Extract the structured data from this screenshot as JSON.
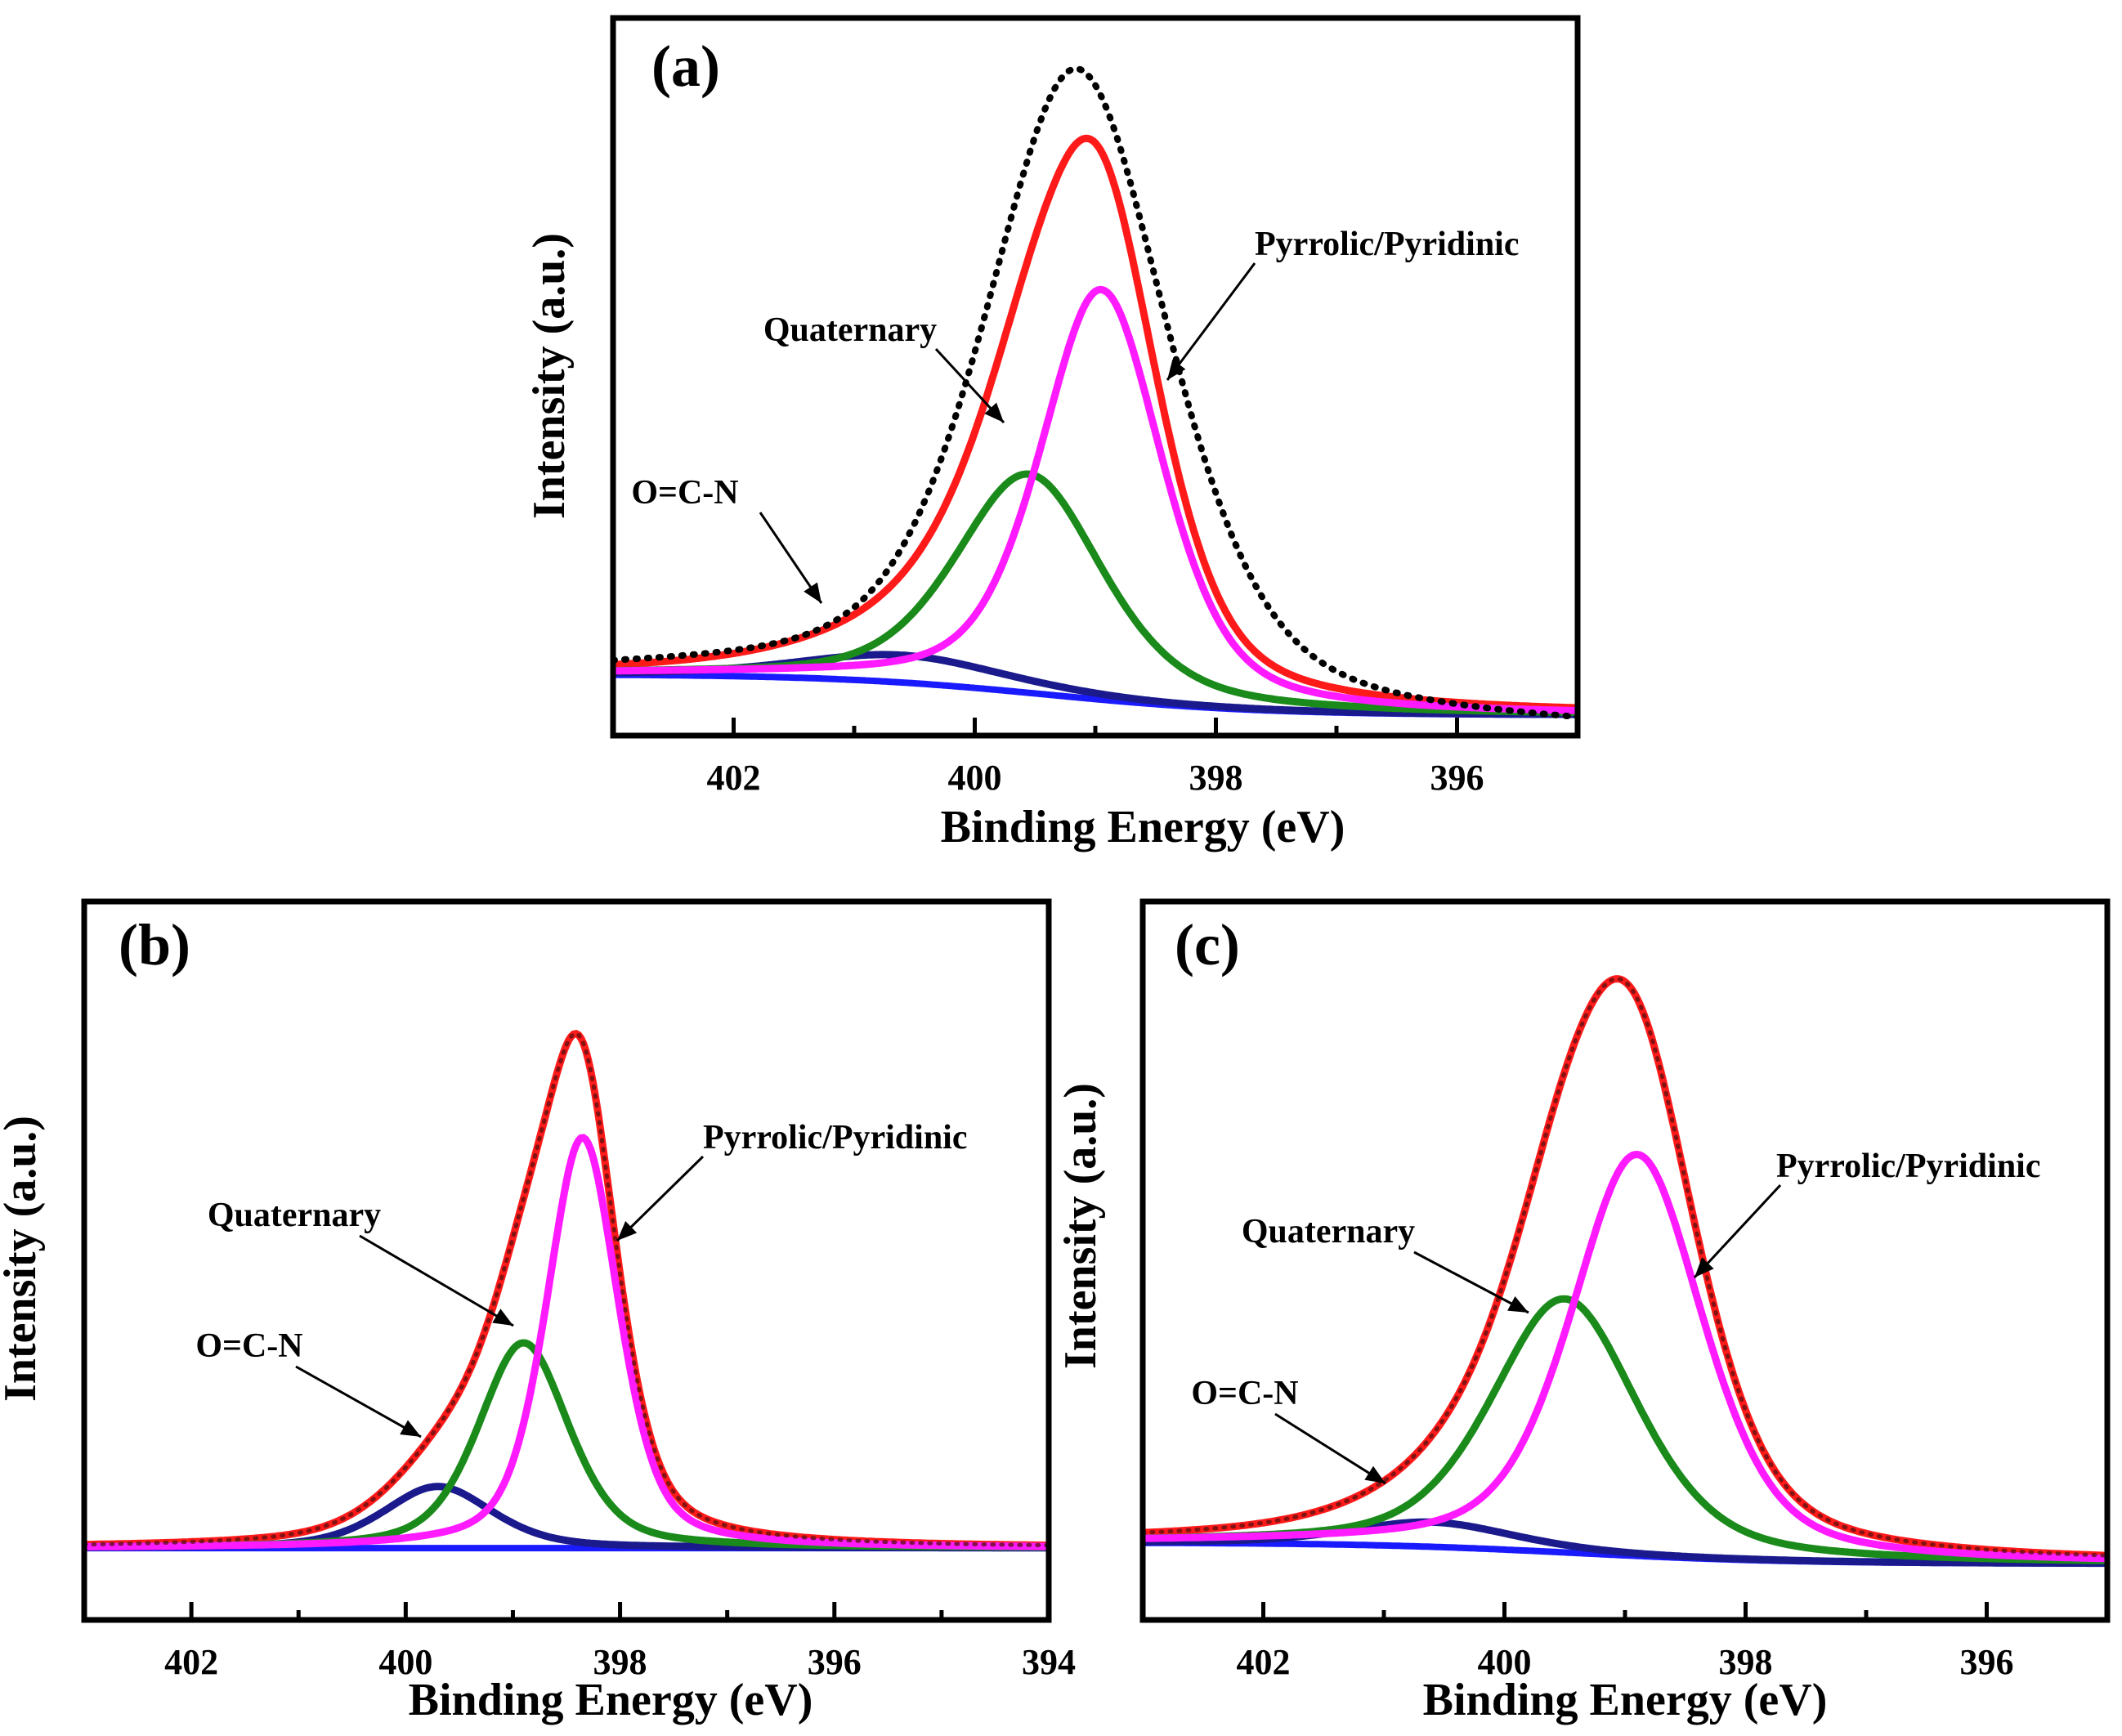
{
  "chart_data": [
    {
      "id": "a",
      "type": "line",
      "panel_label": "(a)",
      "xlabel": "Binding Energy (eV)",
      "ylabel": "Intensity (a.u.)",
      "xlim": [
        403,
        395
      ],
      "ylim": [
        -0.05,
        1.0
      ],
      "x_ticks": [
        402,
        400,
        398,
        396
      ],
      "minor_ticks": [
        403,
        401,
        399,
        397,
        395
      ],
      "background": {
        "left": 0.04,
        "right": -0.02
      },
      "peaks": [
        {
          "name": "Quaternary",
          "center": 399.55,
          "height": 0.32,
          "width": 0.72,
          "color": "#1a8a1a"
        },
        {
          "name": "Pyrrolic/Pyridinic",
          "center": 398.95,
          "height": 0.6,
          "width": 0.6,
          "color": "#ff1aff"
        },
        {
          "name": "O=C-N",
          "center": 400.6,
          "height": 0.04,
          "width": 1.0,
          "color": "#1a1a8c"
        }
      ],
      "raw_series": {
        "name": "Raw data",
        "color": "#000000",
        "center": 399.15,
        "height": 0.96,
        "width": 0.9,
        "baseline": 0.04
      },
      "fit_series": {
        "name": "Fitted envelope",
        "color": "#ff1a1a"
      },
      "background_color": "#1a1aff",
      "annotations": [
        {
          "text": "Pyrrolic/Pyridinic",
          "peak": "Pyrrolic/Pyridinic"
        },
        {
          "text": "Quaternary",
          "peak": "Quaternary"
        },
        {
          "text": "O=C-N",
          "peak": "O=C-N"
        }
      ]
    },
    {
      "id": "b",
      "type": "line",
      "panel_label": "(b)",
      "xlabel": "Binding Energy (eV)",
      "ylabel": "Intensity (a.u.)",
      "xlim": [
        403,
        394
      ],
      "ylim": [
        -0.1,
        0.95
      ],
      "x_ticks": [
        402,
        400,
        398,
        396,
        394
      ],
      "minor_ticks": [
        403,
        401,
        399,
        397,
        395
      ],
      "background": {
        "left": 0.005,
        "right": 0.005
      },
      "peaks": [
        {
          "name": "Quaternary",
          "center": 398.9,
          "height": 0.3,
          "width": 0.5,
          "color": "#1a8a1a"
        },
        {
          "name": "Pyrrolic/Pyridinic",
          "center": 398.35,
          "height": 0.6,
          "width": 0.4,
          "color": "#ff1aff"
        },
        {
          "name": "O=C-N",
          "center": 399.7,
          "height": 0.09,
          "width": 0.6,
          "color": "#1a1a8c"
        }
      ],
      "raw_series": null,
      "fit_series": {
        "name": "Fitted envelope",
        "color": "#ff1a1a"
      },
      "background_color": "#1a1aff",
      "annotations": [
        {
          "text": "Pyrrolic/Pyridinic",
          "peak": "Pyrrolic/Pyridinic"
        },
        {
          "text": "Quaternary",
          "peak": "Quaternary"
        },
        {
          "text": "O=C-N",
          "peak": "O=C-N"
        }
      ]
    },
    {
      "id": "c",
      "type": "line",
      "panel_label": "(c)",
      "xlabel": "Binding Energy (eV)",
      "ylabel": "Intensity (a.u.)",
      "xlim": [
        403,
        395
      ],
      "ylim": [
        -0.1,
        0.92
      ],
      "x_ticks": [
        402,
        400,
        398,
        396
      ],
      "minor_ticks": [
        403,
        401,
        399,
        397,
        395
      ],
      "background": {
        "left": 0.01,
        "right": -0.02
      },
      "peaks": [
        {
          "name": "Quaternary",
          "center": 399.5,
          "height": 0.36,
          "width": 0.72,
          "color": "#1a8a1a"
        },
        {
          "name": "Pyrrolic/Pyridinic",
          "center": 398.9,
          "height": 0.57,
          "width": 0.65,
          "color": "#ff1aff"
        },
        {
          "name": "O=C-N",
          "center": 400.6,
          "height": 0.035,
          "width": 0.8,
          "color": "#1a1a8c"
        }
      ],
      "raw_series": null,
      "fit_series": {
        "name": "Fitted envelope",
        "color": "#ff1a1a"
      },
      "background_color": "#1a1aff",
      "annotations": [
        {
          "text": "Pyrrolic/Pyridinic",
          "peak": "Pyrrolic/Pyridinic"
        },
        {
          "text": "Quaternary",
          "peak": "Quaternary"
        },
        {
          "text": "O=C-N",
          "peak": "O=C-N"
        }
      ]
    }
  ]
}
